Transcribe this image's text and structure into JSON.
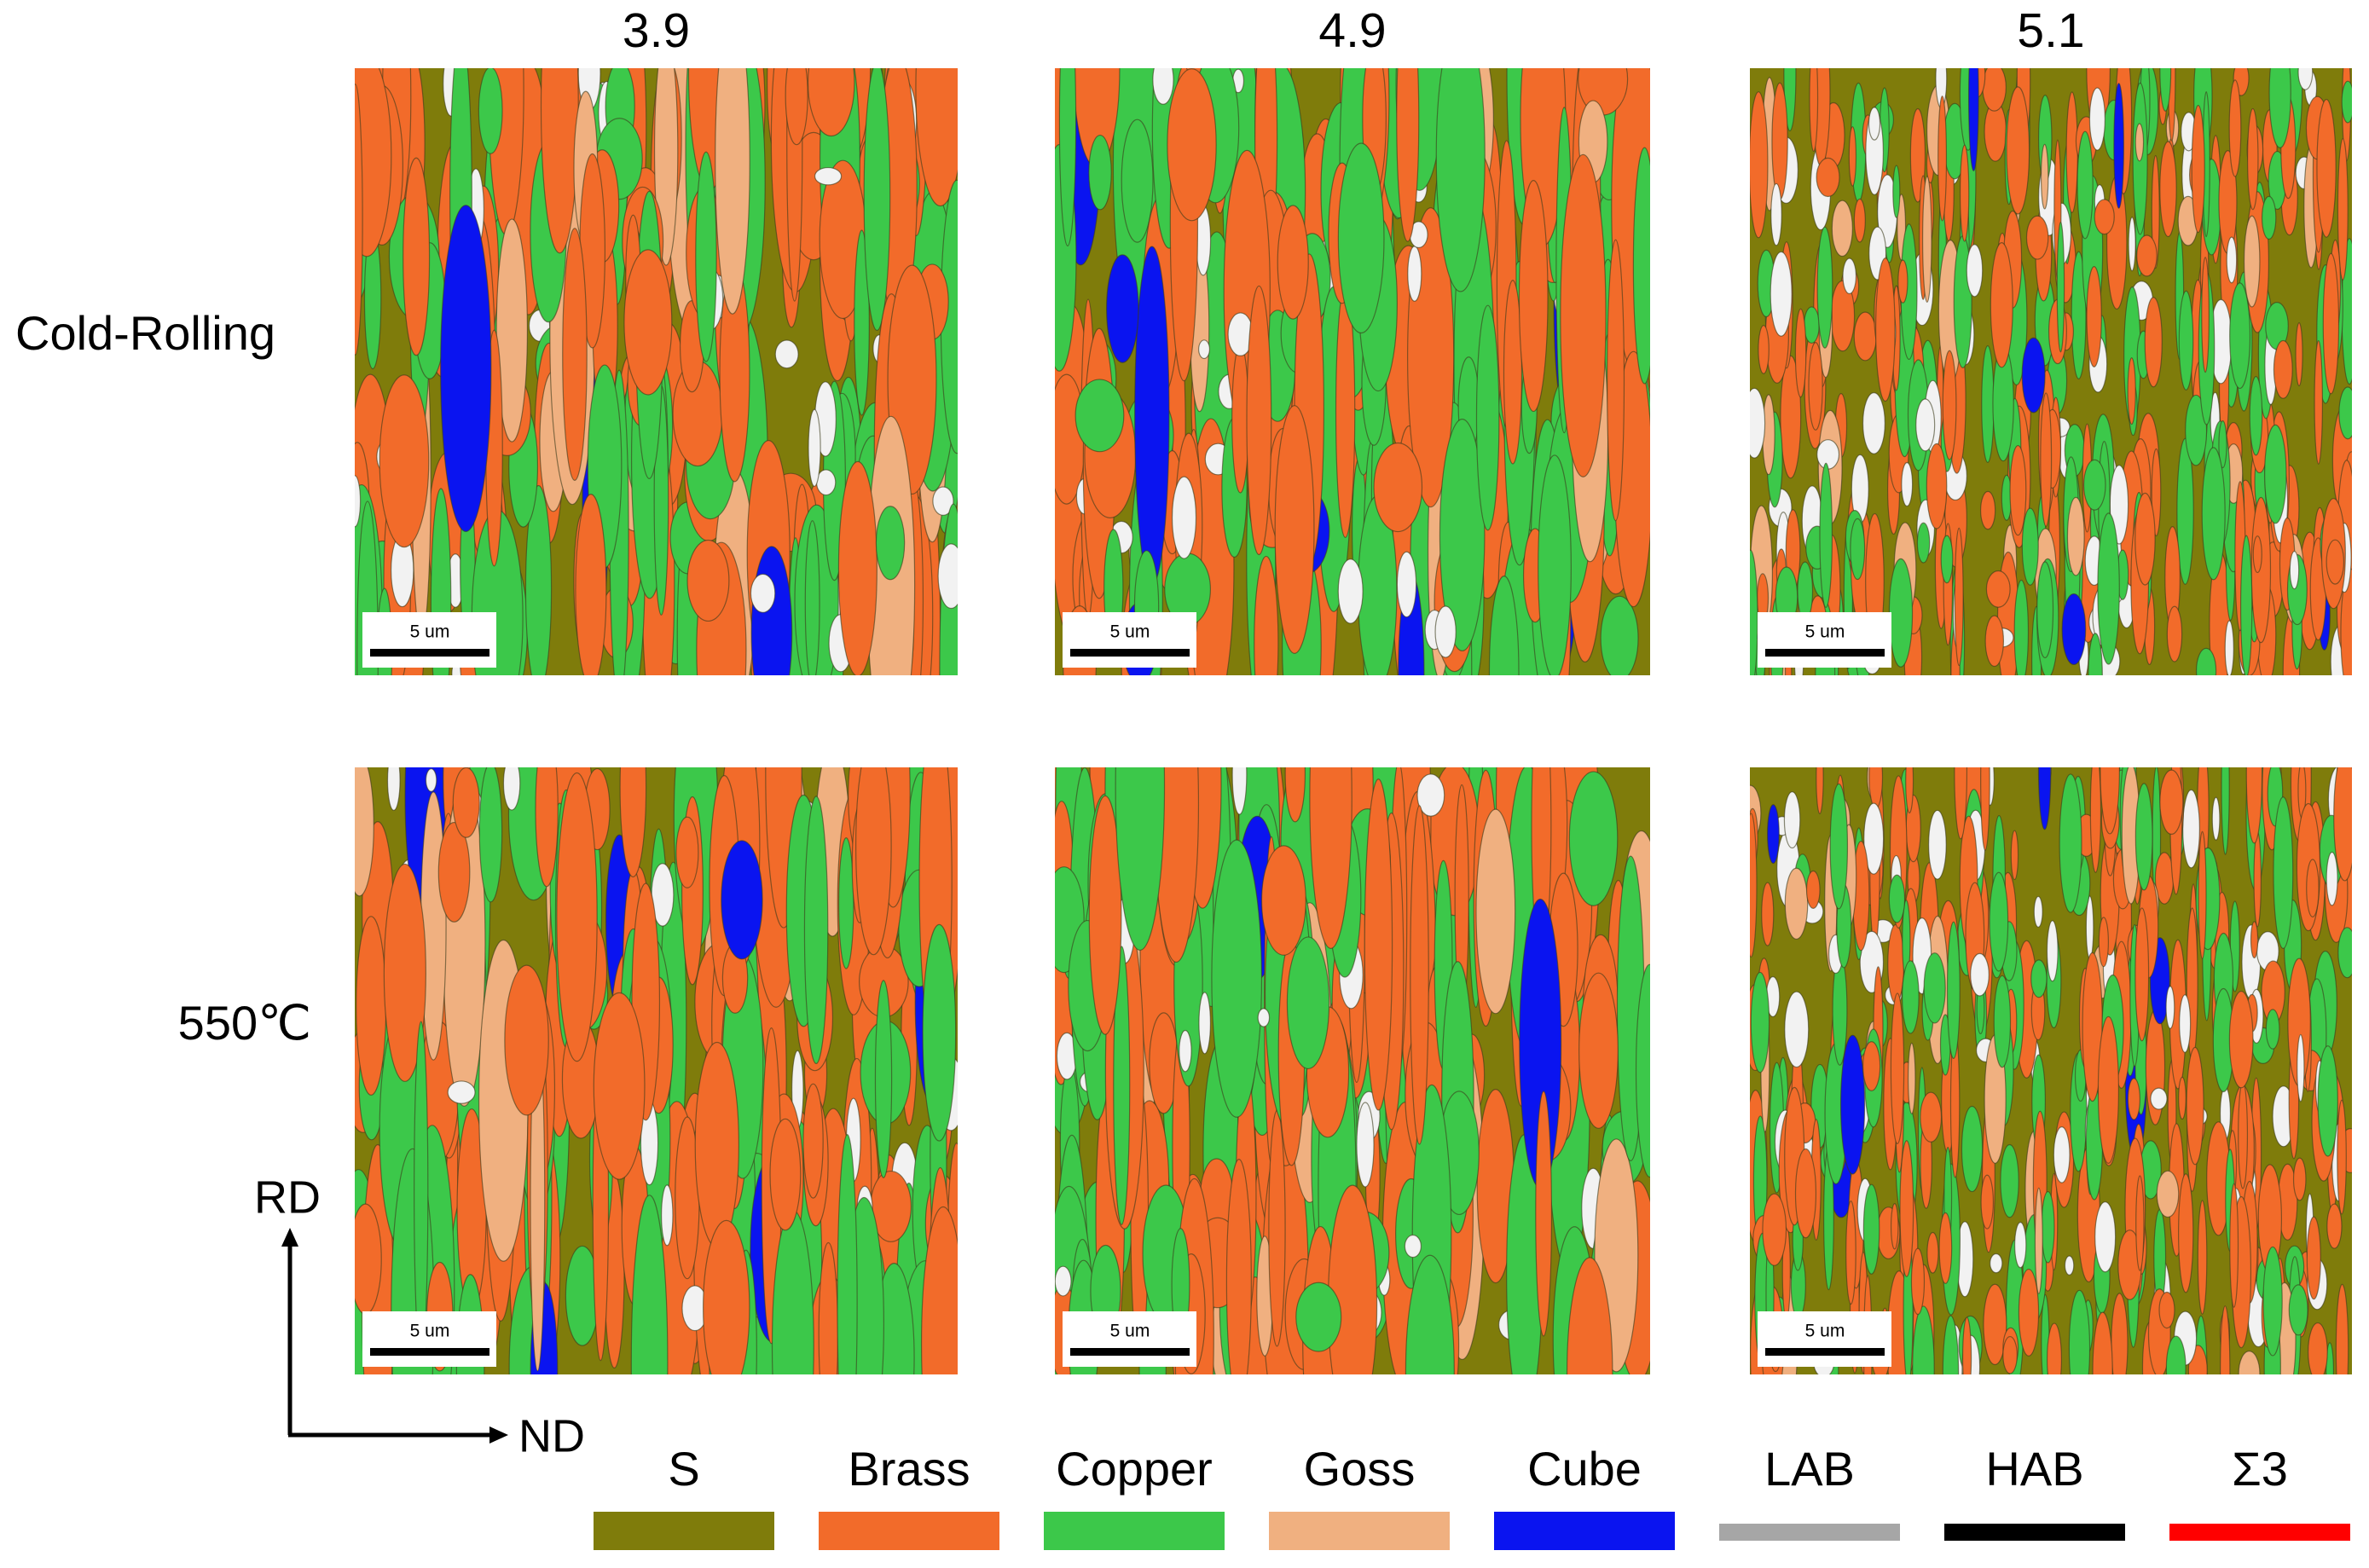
{
  "figure": {
    "column_titles": [
      "3.9",
      "4.9",
      "5.1"
    ],
    "row_labels": [
      "Cold-Rolling",
      "550℃"
    ],
    "scale_bar_label": "5 um",
    "axes": {
      "vertical": "RD",
      "horizontal": "ND"
    },
    "legend": [
      {
        "label": "S",
        "color": "#7f7c0b"
      },
      {
        "label": "Brass",
        "color": "#f26b2a"
      },
      {
        "label": "Copper",
        "color": "#3cc84a"
      },
      {
        "label": "Goss",
        "color": "#f0b080"
      },
      {
        "label": "Cube",
        "color": "#0a14f0"
      },
      {
        "label": "LAB",
        "color": "#a6a6a6"
      },
      {
        "label": "HAB",
        "color": "#000000"
      },
      {
        "label": "Σ3",
        "color": "#ff0000"
      }
    ]
  }
}
